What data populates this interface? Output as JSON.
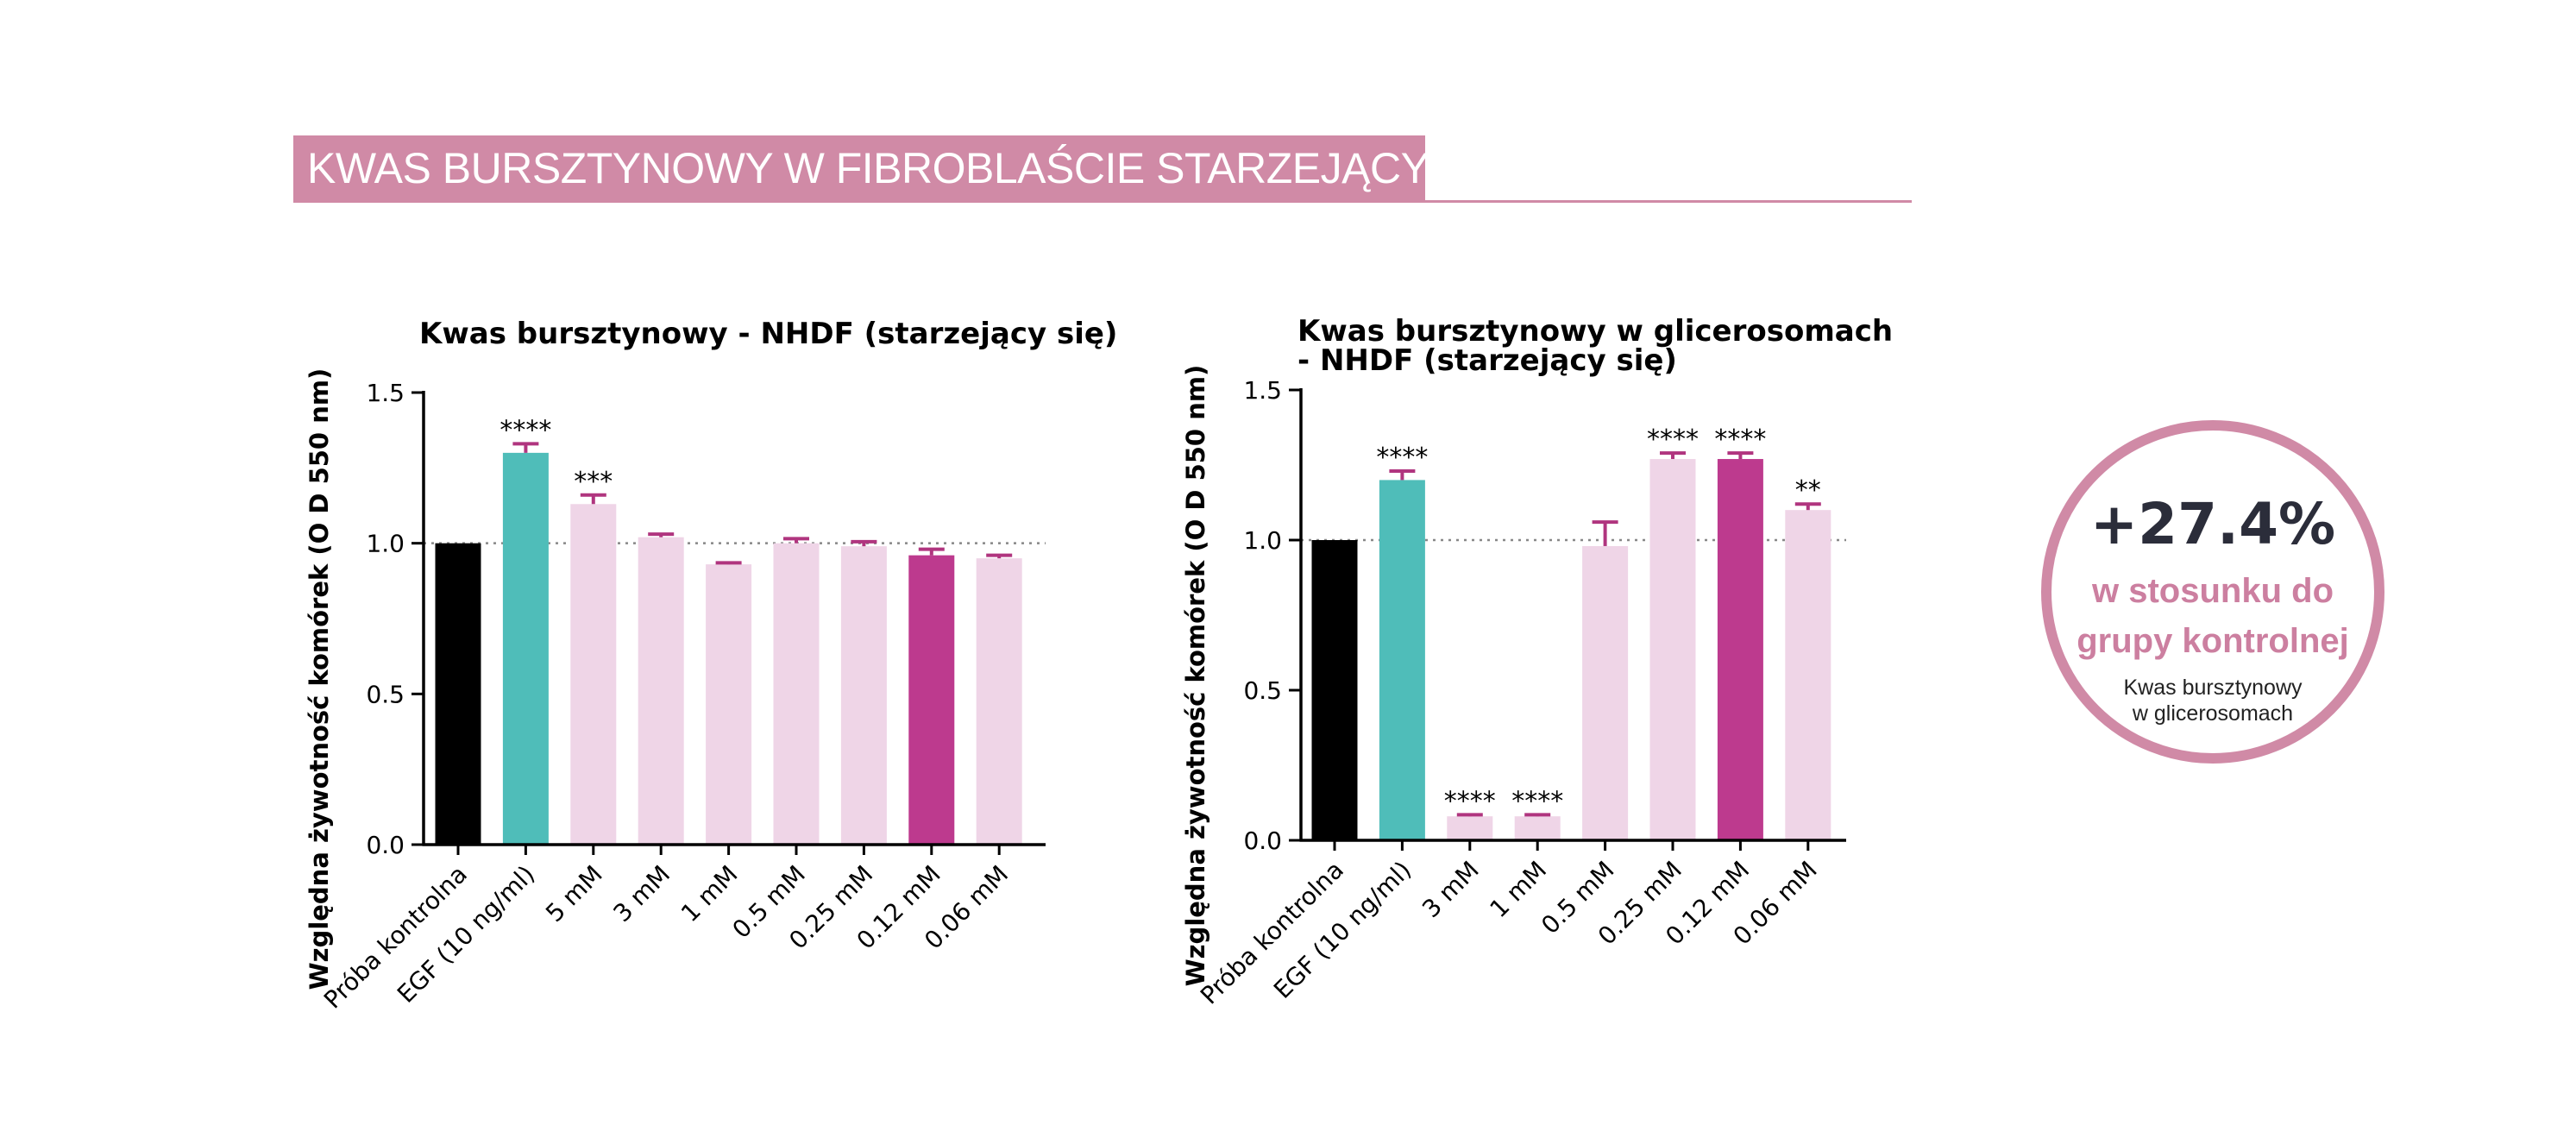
{
  "header": {
    "title": "KWAS BURSZTYNOWY W FIBROBLAŚCIE STARZEJĄCYM SIĘ"
  },
  "callout": {
    "percent": "+27.4%",
    "line1": "w stosunku do",
    "line2": "grupy kontrolnej",
    "sub1": "Kwas bursztynowy",
    "sub2": "w glicerosomach"
  },
  "colors": {
    "control": "#000000",
    "egf": "#4fbdb9",
    "light_pink": "#efd5e7",
    "magenta": "#bd3a8e",
    "error": "#b0357f",
    "accent": "#d08aa6"
  },
  "chart_data": [
    {
      "type": "bar",
      "title": "Kwas bursztynowy - NHDF (starzejący się)",
      "ylabel": "Względna żywotność komórek (O D 550 nm)",
      "xlabel": "",
      "ylim": [
        0,
        1.5
      ],
      "yticks": [
        "0.0",
        "0.5",
        "1.0",
        "1.5"
      ],
      "reference_line": 1.0,
      "categories": [
        "Próba kontrolna",
        "EGF (10 ng/ml)",
        "5 mM",
        "3 mM",
        "1 mM",
        "0.5 mM",
        "0.25 mM",
        "0.12 mM",
        "0.06 mM"
      ],
      "values": [
        1.0,
        1.3,
        1.13,
        1.02,
        0.93,
        1.0,
        0.99,
        0.96,
        0.95
      ],
      "errors": [
        0.0,
        0.03,
        0.03,
        0.01,
        0.005,
        0.015,
        0.015,
        0.02,
        0.01
      ],
      "significance": [
        "",
        "****",
        "***",
        "",
        "",
        "",
        "",
        "",
        ""
      ],
      "bar_colors": [
        "control",
        "egf",
        "light_pink",
        "light_pink",
        "light_pink",
        "light_pink",
        "light_pink",
        "magenta",
        "light_pink"
      ],
      "grid": false
    },
    {
      "type": "bar",
      "title_lines": [
        "Kwas bursztynowy w glicerosomach",
        "- NHDF (starzejący się)"
      ],
      "ylabel": "Względna żywotność komórek (O D 550 nm)",
      "xlabel": "",
      "ylim": [
        0,
        1.5
      ],
      "yticks": [
        "0.0",
        "0.5",
        "1.0",
        "1.5"
      ],
      "reference_line": 1.0,
      "categories": [
        "Próba kontrolna",
        "EGF (10 ng/ml)",
        "3 mM",
        "1 mM",
        "0.5 mM",
        "0.25 mM",
        "0.12 mM",
        "0.06 mM"
      ],
      "values": [
        1.0,
        1.2,
        0.08,
        0.08,
        0.98,
        1.27,
        1.27,
        1.1
      ],
      "errors": [
        0.0,
        0.03,
        0.005,
        0.005,
        0.08,
        0.02,
        0.02,
        0.02
      ],
      "significance": [
        "",
        "****",
        "****",
        "****",
        "",
        "****",
        "****",
        "**"
      ],
      "bar_colors": [
        "control",
        "egf",
        "light_pink",
        "light_pink",
        "light_pink",
        "light_pink",
        "magenta",
        "light_pink"
      ],
      "grid": false
    }
  ]
}
